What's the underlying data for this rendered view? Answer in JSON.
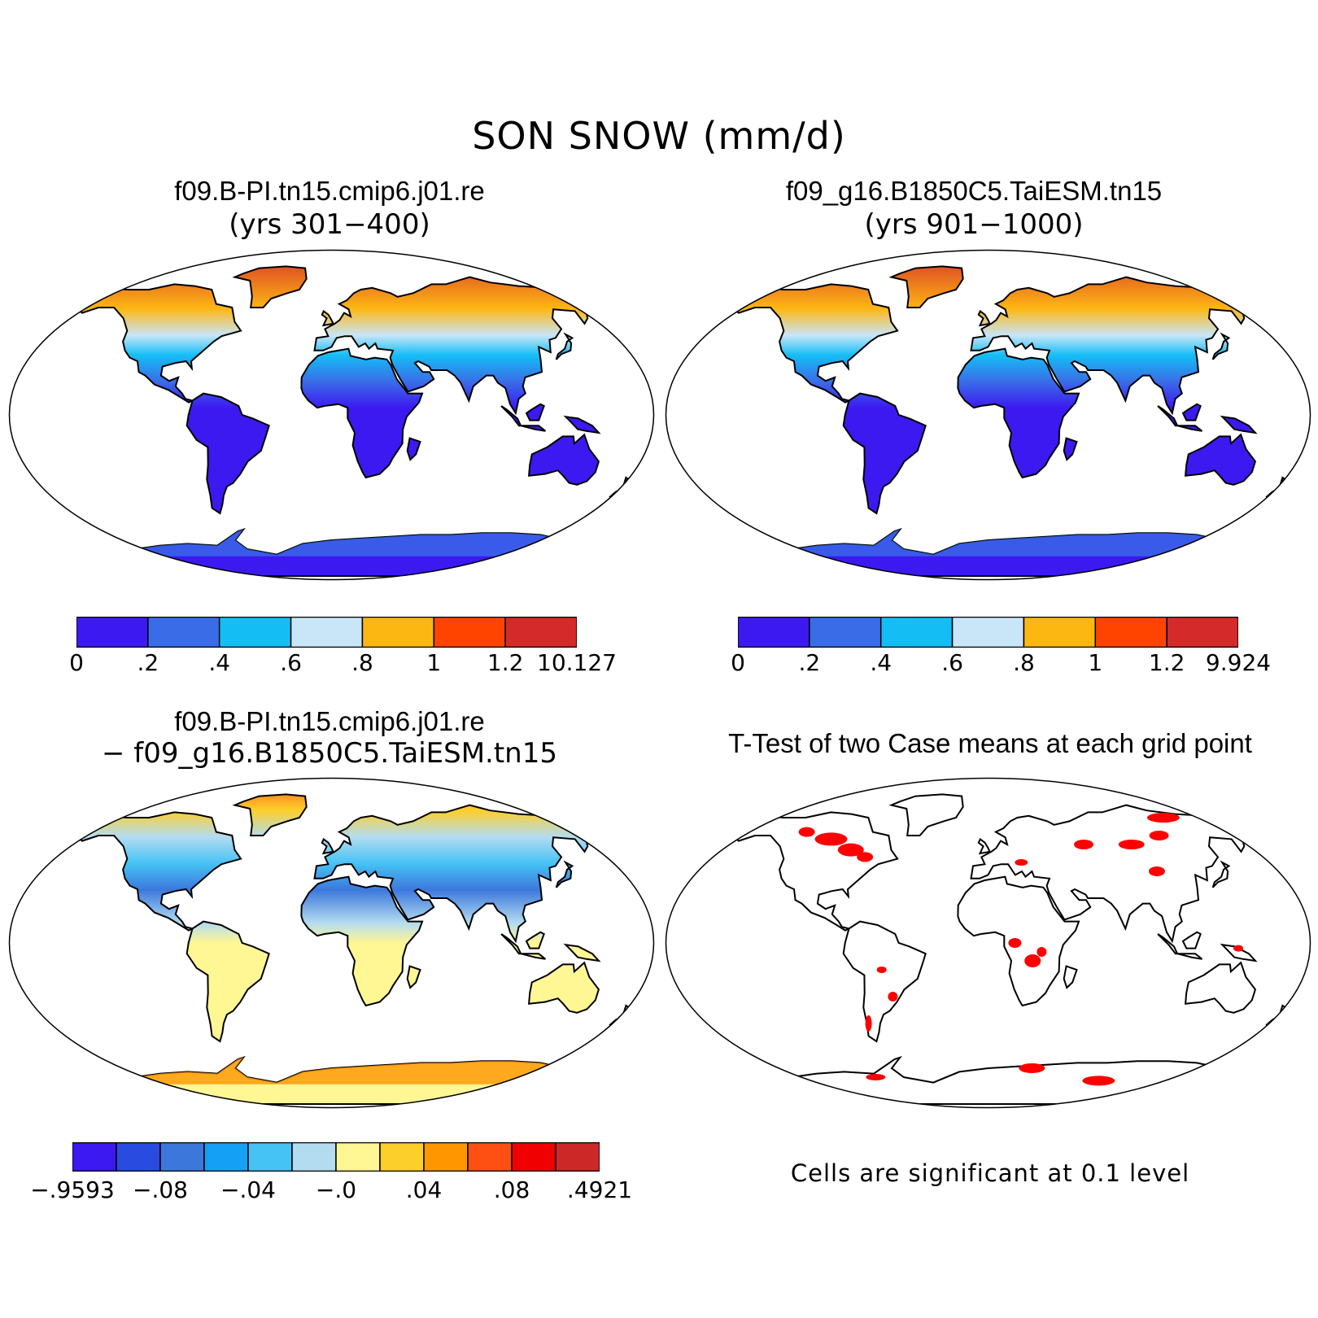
{
  "title": "SON SNOW (mm/d)",
  "panels": {
    "case1": {
      "title": "f09.B-PI.tn15.cmip6.j01.re",
      "subtitle": "(yrs 301−400)",
      "colorbar": {
        "colors": [
          "#3c19f0",
          "#3a6ce8",
          "#14bef5",
          "#c8e6f8",
          "#fdb713",
          "#ff4400",
          "#d42a2a"
        ],
        "labels": [
          "0",
          ".2",
          ".4",
          ".6",
          ".8",
          "1",
          "1.2",
          "10.127"
        ]
      }
    },
    "case2": {
      "title": "f09_g16.B1850C5.TaiESM.tn15",
      "subtitle": "(yrs 901−1000)",
      "colorbar": {
        "colors": [
          "#3c19f0",
          "#3a6ce8",
          "#14bef5",
          "#c8e6f8",
          "#fdb713",
          "#ff4400",
          "#d42a2a"
        ],
        "labels": [
          "0",
          ".2",
          ".4",
          ".6",
          ".8",
          "1",
          "1.2",
          "9.924"
        ]
      }
    },
    "diff": {
      "title": "f09.B-PI.tn15.cmip6.j01.re",
      "subtitle": "− f09_g16.B1850C5.TaiESM.tn15",
      "colorbar": {
        "colors": [
          "#3c19f0",
          "#2a4be0",
          "#3c78dc",
          "#14a0f5",
          "#46c3f5",
          "#b4dcf0",
          "#fff694",
          "#fdcf2a",
          "#ff9600",
          "#ff5014",
          "#f00000",
          "#cd2828"
        ],
        "labels": [
          "−.9593",
          "−.08",
          "−.04",
          "−.0",
          ".04",
          ".08",
          ".4921"
        ]
      }
    },
    "ttest": {
      "title": "T-Test of two Case means at each grid point",
      "note": "Cells are significant at 0.1 level",
      "signif_color": "#ff0000"
    }
  }
}
